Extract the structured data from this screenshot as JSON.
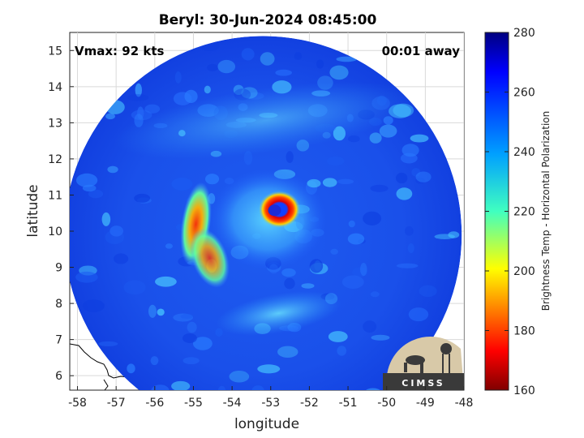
{
  "chart_data": {
    "type": "heatmap",
    "title": "Beryl: 30-Jun-2024 08:45:00",
    "xlabel": "longitude",
    "ylabel": "latitude",
    "xlim": [
      -58.2,
      -48
    ],
    "ylim": [
      5.6,
      15.5
    ],
    "xticks": [
      -58,
      -57,
      -56,
      -55,
      -54,
      -53,
      -52,
      -51,
      -50,
      -49,
      -48
    ],
    "yticks": [
      6,
      7,
      8,
      9,
      10,
      11,
      12,
      13,
      14,
      15
    ],
    "grid": true,
    "annotations": {
      "vmax": "Vmax: 92 kts",
      "time_away": "00:01 away"
    },
    "storm_center": {
      "lon": -52.9,
      "lat": 10.6
    },
    "swath_center": {
      "lon": -53.2,
      "lat": 9.9
    },
    "colorbar": {
      "label": "Brightness Temp - Horizontal Polarization",
      "range": [
        160,
        280
      ],
      "ticks": [
        160,
        180,
        200,
        220,
        240,
        260,
        280
      ],
      "colormap": "jet"
    }
  },
  "logo": {
    "text": "CIMSS"
  }
}
